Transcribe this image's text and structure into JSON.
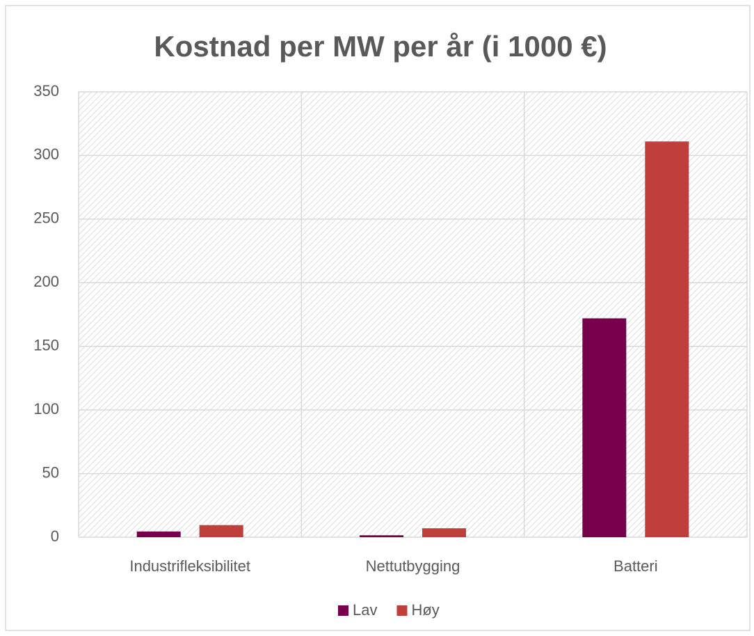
{
  "chart_data": {
    "type": "bar",
    "title": "Kostnad per MW per år (i 1000 €)",
    "categories": [
      "Industrifleksibilitet",
      "Nettutbygging",
      "Batteri"
    ],
    "series": [
      {
        "name": "Lav",
        "color": "#76004b",
        "values": [
          4.5,
          1.5,
          172
        ]
      },
      {
        "name": "Høy",
        "color": "#bf3f3a",
        "values": [
          9.5,
          7,
          311
        ]
      }
    ],
    "ylim": [
      0,
      350
    ],
    "yticks": [
      0,
      50,
      100,
      150,
      200,
      250,
      300,
      350
    ],
    "grid": true,
    "legend": "bottom"
  }
}
